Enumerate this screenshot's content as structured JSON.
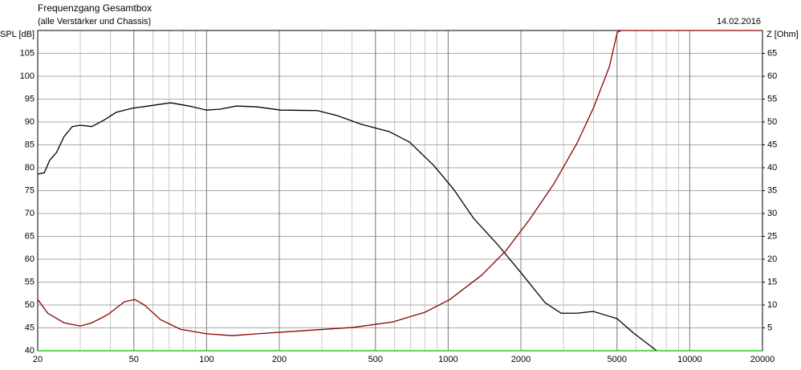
{
  "chart_data": {
    "type": "line",
    "title": "Frequenzgang Gesamtbox",
    "subtitle": "(alle Verstärker und Chassis)",
    "date": "14.02.2016",
    "y_label": "SPL [dB]",
    "y2_label": "Z [Ohm]",
    "xscale": "log",
    "xlim": [
      20,
      20000
    ],
    "xticks": [
      20,
      50,
      100,
      200,
      500,
      1000,
      2000,
      5000,
      10000,
      20000
    ],
    "ylim": [
      40,
      110
    ],
    "yticks": [
      40,
      45,
      50,
      55,
      60,
      65,
      70,
      75,
      80,
      85,
      90,
      95,
      100,
      105
    ],
    "y2lim": [
      0,
      70
    ],
    "y2ticks": [
      5,
      10,
      15,
      20,
      25,
      30,
      35,
      40,
      45,
      50,
      55,
      60,
      65
    ],
    "grid": true,
    "minor_grid": true,
    "series": [
      {
        "color": "#000000",
        "x": [
          20,
          21.3,
          22.4,
          23.9,
          25.7,
          27.8,
          30,
          33.5,
          37.6,
          42.2,
          49.2,
          57.5,
          70.9,
          84.4,
          100,
          114,
          133,
          162,
          203,
          287,
          347,
          437,
          570,
          692,
          872,
          1053,
          1276,
          1603,
          2005,
          2520,
          2934,
          3417,
          3988,
          5010,
          5840,
          7300
        ],
        "values": [
          78.6,
          78.9,
          81.6,
          83.3,
          86.8,
          89,
          89.3,
          89,
          90.4,
          92.1,
          93,
          93.5,
          94.2,
          93.5,
          92.6,
          92.8,
          93.5,
          93.3,
          92.6,
          92.5,
          91.4,
          89.5,
          87.9,
          85.6,
          80.5,
          75.3,
          68.9,
          63.2,
          57,
          50.5,
          48.2,
          48.2,
          48.6,
          47,
          43.9,
          40
        ]
      },
      {
        "color": "#8b0000",
        "axis": "y2",
        "x": [
          20,
          22,
          25.7,
          30,
          33.5,
          39,
          45.7,
          50.5,
          55.3,
          64.4,
          78,
          100,
          128,
          162,
          254,
          404,
          590,
          800,
          1016,
          1375,
          1730,
          2180,
          2740,
          3417,
          3988,
          4650,
          5010,
          5200,
          20000
        ],
        "values": [
          11.2,
          8.2,
          6.1,
          5.4,
          6.1,
          7.9,
          10.7,
          11.2,
          10,
          6.8,
          4.7,
          3.7,
          3.3,
          3.7,
          4.4,
          5.1,
          6.3,
          8.4,
          11.2,
          16.5,
          21.8,
          28.8,
          36.5,
          45.4,
          53,
          62.1,
          69.6,
          70,
          70
        ]
      },
      {
        "color": "#00c000",
        "x": [
          20,
          20000
        ],
        "values": [
          40,
          40
        ]
      }
    ]
  }
}
